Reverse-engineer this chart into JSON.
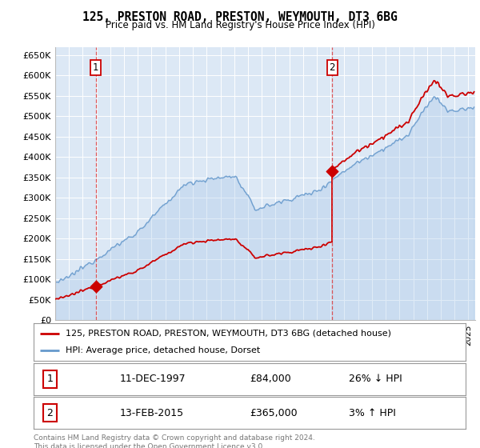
{
  "title": "125, PRESTON ROAD, PRESTON, WEYMOUTH, DT3 6BG",
  "subtitle": "Price paid vs. HM Land Registry's House Price Index (HPI)",
  "ylabel_ticks": [
    "£0",
    "£50K",
    "£100K",
    "£150K",
    "£200K",
    "£250K",
    "£300K",
    "£350K",
    "£400K",
    "£450K",
    "£500K",
    "£550K",
    "£600K",
    "£650K"
  ],
  "ytick_values": [
    0,
    50000,
    100000,
    150000,
    200000,
    250000,
    300000,
    350000,
    400000,
    450000,
    500000,
    550000,
    600000,
    650000
  ],
  "ylim": [
    0,
    670000
  ],
  "plot_bg": "#dce8f5",
  "grid_color": "#ffffff",
  "sale1_date": 1997.94,
  "sale1_price": 84000,
  "sale2_date": 2015.12,
  "sale2_price": 365000,
  "legend_line1": "125, PRESTON ROAD, PRESTON, WEYMOUTH, DT3 6BG (detached house)",
  "legend_line2": "HPI: Average price, detached house, Dorset",
  "annotation1_date": "11-DEC-1997",
  "annotation1_price": "£84,000",
  "annotation1_hpi": "26% ↓ HPI",
  "annotation2_date": "13-FEB-2015",
  "annotation2_price": "£365,000",
  "annotation2_hpi": "3% ↑ HPI",
  "footer": "Contains HM Land Registry data © Crown copyright and database right 2024.\nThis data is licensed under the Open Government Licence v3.0.",
  "line_color_price": "#cc0000",
  "line_color_hpi": "#6699cc"
}
